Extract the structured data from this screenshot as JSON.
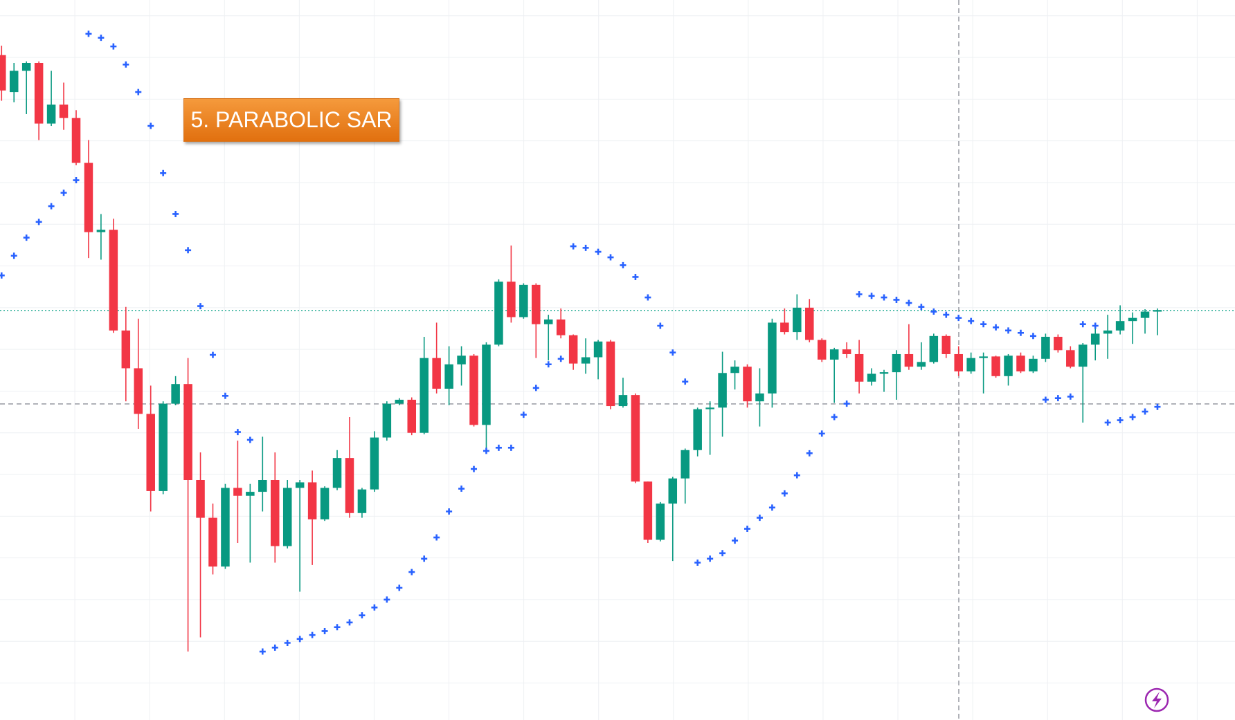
{
  "chart_data": {
    "type": "candlestick",
    "title": "5. PARABOLIC SAR",
    "up_color": "#089981",
    "down_color": "#f23645",
    "ylim": [
      85,
      1000
    ],
    "open": [
      930,
      883,
      910,
      920,
      843,
      867,
      850,
      793,
      705,
      708,
      580,
      532,
      474,
      376,
      487,
      512,
      390,
      342,
      280,
      380,
      370,
      375,
      390,
      306,
      380,
      387,
      340,
      380,
      418,
      348,
      378,
      444,
      487,
      492,
      450,
      545,
      506,
      537,
      548,
      460,
      562,
      642,
      597,
      638,
      588,
      594,
      574,
      538,
      546,
      566,
      484,
      498,
      388,
      314,
      360,
      392,
      428,
      480,
      482,
      526,
      534,
      490,
      500,
      590,
      578,
      609,
      568,
      543,
      556,
      550,
      515,
      525,
      527,
      550,
      534,
      540,
      573,
      550,
      528,
      545,
      547,
      522,
      548,
      528,
      544,
      572,
      555,
      534,
      562,
      576,
      580,
      592,
      596,
      604
    ],
    "high": [
      942,
      920,
      922,
      922,
      910,
      895,
      860,
      822,
      728,
      722,
      610,
      595,
      510,
      490,
      522,
      545,
      425,
      360,
      385,
      440,
      385,
      445,
      425,
      390,
      390,
      402,
      382,
      428,
      470,
      380,
      452,
      490,
      494,
      495,
      572,
      590,
      560,
      560,
      550,
      565,
      645,
      688,
      640,
      640,
      600,
      608,
      575,
      570,
      568,
      568,
      520,
      500,
      388,
      362,
      394,
      430,
      482,
      490,
      553,
      542,
      537,
      532,
      595,
      608,
      626,
      620,
      570,
      558,
      565,
      568,
      532,
      530,
      555,
      588,
      565,
      576,
      575,
      560,
      552,
      552,
      548,
      550,
      552,
      548,
      576,
      575,
      560,
      564,
      590,
      600,
      612,
      603,
      607,
      608
    ],
    "low": [
      872,
      870,
      855,
      822,
      840,
      835,
      790,
      672,
      670,
      577,
      490,
      455,
      350,
      372,
      485,
      172,
      190,
      270,
      277,
      310,
      285,
      350,
      285,
      303,
      248,
      282,
      338,
      377,
      342,
      342,
      375,
      440,
      485,
      447,
      448,
      500,
      485,
      510,
      458,
      430,
      560,
      590,
      595,
      545,
      542,
      570,
      530,
      525,
      518,
      480,
      482,
      386,
      310,
      312,
      287,
      360,
      420,
      422,
      445,
      505,
      482,
      458,
      482,
      575,
      568,
      565,
      540,
      488,
      545,
      500,
      510,
      502,
      492,
      530,
      530,
      538,
      545,
      522,
      525,
      500,
      520,
      510,
      526,
      526,
      540,
      552,
      532,
      463,
      542,
      544,
      575,
      563,
      576,
      574
    ],
    "close": [
      885,
      910,
      920,
      843,
      867,
      850,
      793,
      705,
      708,
      580,
      532,
      474,
      376,
      487,
      512,
      390,
      342,
      280,
      380,
      370,
      375,
      390,
      306,
      380,
      387,
      340,
      380,
      418,
      348,
      378,
      444,
      487,
      492,
      450,
      545,
      506,
      537,
      548,
      460,
      562,
      642,
      597,
      638,
      588,
      594,
      574,
      538,
      546,
      566,
      484,
      498,
      388,
      314,
      360,
      392,
      428,
      480,
      482,
      526,
      534,
      490,
      500,
      590,
      578,
      609,
      568,
      543,
      556,
      550,
      515,
      525,
      527,
      550,
      534,
      540,
      573,
      550,
      528,
      545,
      547,
      522,
      548,
      528,
      544,
      572,
      555,
      534,
      562,
      576,
      580,
      592,
      596,
      604,
      606
    ],
    "sar": {
      "color": "#2962ff",
      "values": [
        650,
        675,
        698,
        718,
        738,
        755,
        771,
        957,
        952,
        941,
        918,
        883,
        840,
        780,
        728,
        682,
        611,
        549,
        497,
        451,
        441,
        172,
        177,
        183,
        188,
        193,
        198,
        203,
        209,
        218,
        228,
        238,
        253,
        273,
        290,
        317,
        350,
        379,
        404,
        427,
        431,
        431,
        473,
        507,
        537,
        544,
        687,
        685,
        680,
        673,
        663,
        648,
        622,
        586,
        552,
        515,
        285,
        290,
        297,
        313,
        328,
        342,
        355,
        373,
        396,
        424,
        449,
        470,
        487,
        626,
        624,
        622,
        619,
        615,
        610,
        604,
        600,
        596,
        592,
        588,
        584,
        580,
        577,
        573,
        492,
        494,
        496,
        588,
        586,
        463,
        466,
        470,
        477,
        483
      ]
    }
  }
}
